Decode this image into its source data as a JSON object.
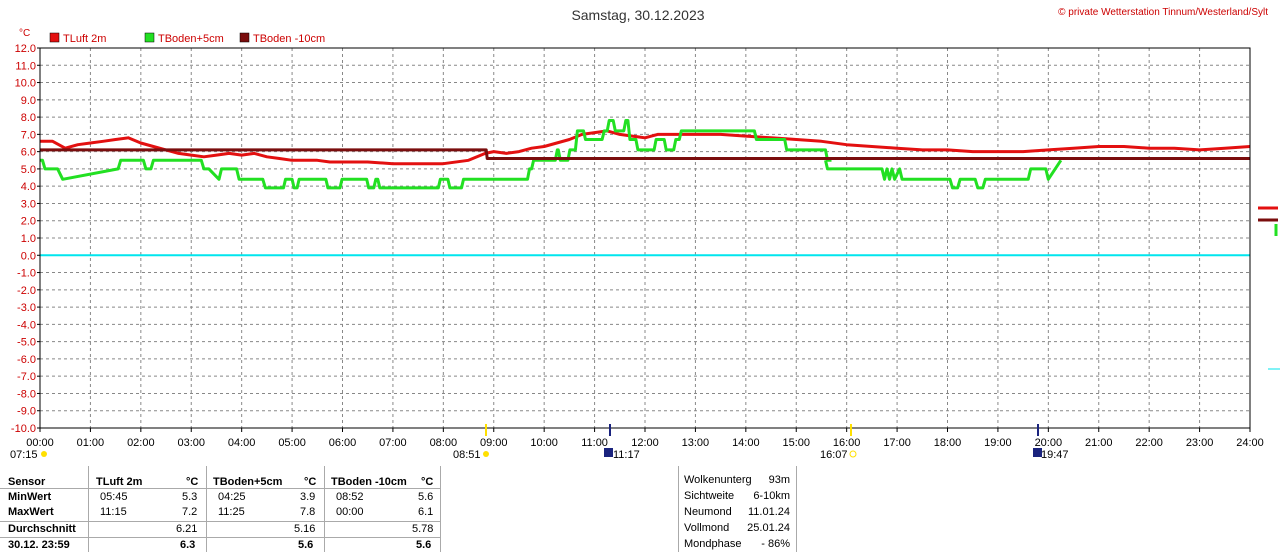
{
  "page": {
    "title": "Samstag, 30.12.2023",
    "copyright": "© private Wetterstation Tinnum/Westerland/Sylt"
  },
  "chart_data": {
    "type": "line",
    "title": "Samstag, 30.12.2023",
    "ylabel": "°C",
    "ylim": [
      -10,
      12
    ],
    "xlim": [
      0,
      24
    ],
    "grid": true,
    "legend_position": "top-left",
    "y_ticks": [
      "12.0",
      "11.0",
      "10.0",
      "9.0",
      "8.0",
      "7.0",
      "6.0",
      "5.0",
      "4.0",
      "3.0",
      "2.0",
      "1.0",
      "0.0",
      "-1.0",
      "-2.0",
      "-3.0",
      "-4.0",
      "-5.0",
      "-6.0",
      "-7.0",
      "-8.0",
      "-9.0",
      "-10.0"
    ],
    "x_ticks": [
      "00:00",
      "01:00",
      "02:00",
      "03:00",
      "04:00",
      "05:00",
      "06:00",
      "07:00",
      "08:00",
      "09:00",
      "10:00",
      "11:00",
      "12:00",
      "13:00",
      "14:00",
      "15:00",
      "16:00",
      "17:00",
      "18:00",
      "19:00",
      "20:00",
      "21:00",
      "22:00",
      "23:00",
      "24:00"
    ],
    "series": [
      {
        "name": "TLuft 2m",
        "color": "#e31010",
        "x": [
          0,
          0.25,
          0.5,
          0.75,
          1,
          1.25,
          1.5,
          1.75,
          2,
          2.25,
          2.5,
          2.75,
          3,
          3.25,
          3.5,
          3.75,
          4,
          4.25,
          4.5,
          4.75,
          5,
          5.5,
          5.75,
          6,
          6.5,
          7,
          7.5,
          8,
          8.5,
          8.83,
          9,
          9.25,
          9.5,
          9.75,
          10,
          10.25,
          10.5,
          10.75,
          11,
          11.25,
          11.5,
          11.75,
          12,
          12.25,
          12.5,
          12.75,
          13,
          13.5,
          14,
          14.5,
          15,
          15.5,
          16,
          16.5,
          17,
          17.5,
          18,
          18.5,
          19,
          19.5,
          20,
          20.5,
          21,
          21.5,
          22,
          22.5,
          23,
          23.5,
          24
        ],
        "y": [
          6.6,
          6.6,
          6.2,
          6.4,
          6.5,
          6.6,
          6.7,
          6.8,
          6.5,
          6.3,
          6.1,
          5.9,
          5.8,
          5.7,
          5.8,
          5.9,
          5.8,
          5.9,
          5.7,
          5.6,
          5.5,
          5.5,
          5.4,
          5.4,
          5.4,
          5.3,
          5.3,
          5.3,
          5.5,
          5.9,
          6.0,
          5.9,
          6.0,
          6.2,
          6.3,
          6.5,
          6.7,
          7.0,
          7.1,
          7.2,
          7.0,
          6.9,
          6.8,
          7.0,
          7.0,
          7.0,
          7.0,
          7.0,
          6.9,
          6.8,
          6.7,
          6.6,
          6.4,
          6.3,
          6.2,
          6.1,
          6.1,
          6.0,
          6.0,
          6.0,
          6.1,
          6.2,
          6.3,
          6.3,
          6.2,
          6.2,
          6.1,
          6.2,
          6.3
        ]
      },
      {
        "name": "TBoden+5cm",
        "color": "#22e022",
        "x": [
          0,
          0.05,
          0.1,
          0.35,
          0.45,
          1.55,
          1.6,
          2.05,
          2.1,
          2.2,
          2.25,
          3.2,
          3.25,
          3.35,
          3.55,
          3.6,
          3.9,
          3.95,
          3.98,
          4.03,
          4.42,
          4.47,
          4.83,
          4.87,
          5.0,
          5.04,
          5.1,
          5.14,
          5.67,
          5.71,
          5.95,
          5.99,
          6.48,
          6.52,
          6.62,
          6.66,
          6.7,
          6.74,
          7.9,
          7.94,
          8.09,
          8.13,
          8.36,
          8.4,
          8.45,
          8.49,
          8.83,
          8.87,
          9.27,
          9.31,
          9.67,
          9.71,
          9.75,
          9.79,
          10.22,
          10.26,
          10.28,
          10.32,
          10.47,
          10.51,
          10.62,
          10.66,
          10.78,
          10.82,
          11.15,
          11.19,
          11.25,
          11.29,
          11.37,
          11.41,
          11.58,
          11.62,
          11.66,
          11.7,
          11.82,
          11.86,
          12.18,
          12.22,
          12.38,
          12.42,
          12.57,
          12.61,
          12.68,
          12.72,
          12.88,
          12.92,
          14.17,
          14.21,
          14.77,
          14.81,
          15.58,
          15.62,
          15.66,
          15.7
        ],
        "y": [
          5.5,
          5.5,
          5.0,
          5.0,
          4.4,
          5.0,
          5.5,
          5.5,
          5.0,
          5.0,
          5.5,
          5.5,
          5.0,
          5.0,
          4.4,
          5.0,
          5.0,
          4.4,
          4.4,
          4.4,
          4.4,
          3.9,
          3.9,
          4.4,
          4.4,
          3.9,
          3.9,
          4.4,
          4.4,
          3.9,
          3.9,
          4.4,
          4.4,
          3.9,
          3.9,
          4.4,
          4.4,
          3.9,
          3.9,
          4.4,
          4.4,
          3.9,
          3.9,
          4.4,
          4.4,
          4.4,
          4.4,
          4.4,
          4.4,
          4.4,
          4.4,
          5.0,
          5.0,
          5.5,
          5.5,
          6.1,
          6.1,
          5.5,
          5.5,
          6.1,
          6.1,
          7.2,
          7.2,
          6.7,
          6.7,
          7.2,
          7.2,
          7.8,
          7.8,
          7.2,
          7.2,
          7.8,
          7.8,
          6.7,
          6.7,
          6.1,
          6.1,
          6.7,
          6.7,
          6.1,
          6.1,
          6.7,
          6.7,
          7.2,
          7.2,
          7.2,
          7.2,
          6.7,
          6.7,
          6.1,
          6.1,
          5.5,
          5.5,
          5.5
        ]
      },
      {
        "name": "TBoden+5cm",
        "color": "#22e022",
        "x": [
          15.58,
          15.62,
          16.7,
          16.75,
          16.8,
          16.85,
          16.9,
          16.95,
          17.05,
          17.1,
          18.05,
          18.1,
          18.2,
          18.25,
          18.55,
          18.6,
          18.7,
          18.75,
          19.0,
          19.05,
          19.6,
          19.65,
          19.95,
          20.0,
          20.25
        ],
        "y": [
          5.5,
          5.0,
          5.0,
          4.4,
          5.0,
          4.4,
          5.0,
          4.4,
          5.0,
          4.4,
          4.4,
          3.9,
          3.9,
          4.4,
          4.4,
          3.9,
          3.9,
          4.4,
          4.4,
          4.4,
          4.4,
          5.0,
          5.0,
          4.4,
          5.5
        ]
      },
      {
        "name": "TBoden -10cm",
        "color": "#7a0d0d",
        "x": [
          0,
          8.85,
          8.87,
          24
        ],
        "y": [
          6.1,
          6.1,
          5.6,
          5.6
        ]
      }
    ],
    "legend": [
      "TLuft 2m",
      "TBoden+5cm",
      "TBoden -10cm"
    ]
  },
  "events": {
    "sunrise": "07:15",
    "sunrise_marker": "08:51",
    "moonset": "11:17",
    "sunset_marker": "16:07",
    "moonrise": "19:47"
  },
  "stats": {
    "sensor": "Sensor",
    "minwert": "MinWert",
    "maxwert": "MaxWert",
    "durchschnitt": "Durchschnitt",
    "current": "30.12. 23:59",
    "cols": [
      {
        "name": "TLuft 2m",
        "unit": "°C",
        "min_time": "05:45",
        "min": "5.3",
        "max_time": "11:15",
        "max": "7.2",
        "avg": "6.21",
        "cur": "6.3"
      },
      {
        "name": "TBoden+5cm",
        "unit": "°C",
        "min_time": "04:25",
        "min": "3.9",
        "max_time": "11:25",
        "max": "7.8",
        "avg": "5.16",
        "cur": "5.6"
      },
      {
        "name": "TBoden -10cm",
        "unit": "°C",
        "min_time": "08:52",
        "min": "5.6",
        "max_time": "00:00",
        "max": "6.1",
        "avg": "5.78",
        "cur": "5.6"
      }
    ]
  },
  "info": {
    "wolken_label": "Wolkenunterg",
    "wolken": "93m",
    "sicht_label": "Sichtweite",
    "sicht": "6-10km",
    "neumond_label": "Neumond",
    "neumond": "11.01.24",
    "vollmond_label": "Vollmond",
    "vollmond": "25.01.24",
    "mondphase_label": "Mondphase",
    "mondphase": "- 86%"
  }
}
